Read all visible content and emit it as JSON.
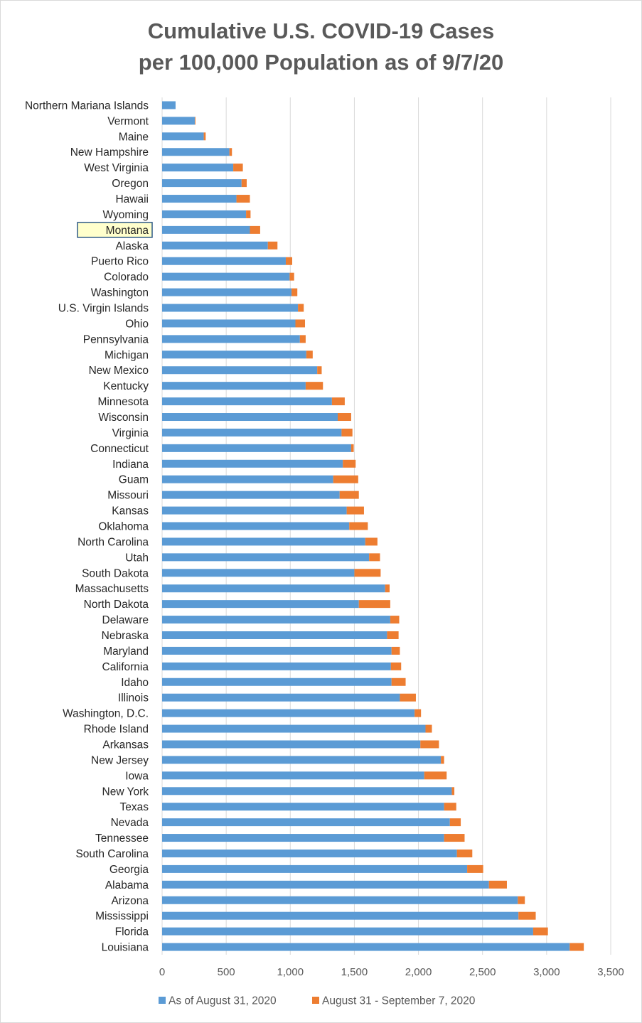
{
  "title": {
    "line1": "Cumulative U.S. COVID-19 Cases",
    "line2": "per 100,000 Population as of 9/7/20"
  },
  "chart_data": {
    "type": "bar",
    "orientation": "horizontal",
    "stacked": true,
    "title": "Cumulative U.S. COVID-19 Cases per 100,000 Population as of 9/7/20",
    "xlim": [
      0,
      3500
    ],
    "xticks": [
      0,
      500,
      1000,
      1500,
      2000,
      2500,
      3000,
      3500
    ],
    "xtick_labels": [
      "0",
      "500",
      "1,000",
      "1,500",
      "2,000",
      "2,500",
      "3,000",
      "3,500"
    ],
    "grid": "vertical",
    "legend_position": "bottom",
    "highlighted_category": "Montana",
    "categories": [
      "Northern Mariana Islands",
      "Vermont",
      "Maine",
      "New Hampshire",
      "West Virginia",
      "Oregon",
      "Hawaii",
      "Wyoming",
      "Montana",
      "Alaska",
      "Puerto Rico",
      "Colorado",
      "Washington",
      "U.S. Virgin Islands",
      "Ohio",
      "Pennsylvania",
      "Michigan",
      "New Mexico",
      "Kentucky",
      "Minnesota",
      "Wisconsin",
      "Virginia",
      "Connecticut",
      "Indiana",
      "Guam",
      "Missouri",
      "Kansas",
      "Oklahoma",
      "North Carolina",
      "Utah",
      "South Dakota",
      "Massachusetts",
      "North Dakota",
      "Delaware",
      "Nebraska",
      "Maryland",
      "California",
      "Idaho",
      "Illinois",
      "Washington, D.C.",
      "Rhode Island",
      "Arkansas",
      "New Jersey",
      "Iowa",
      "New York",
      "Texas",
      "Nevada",
      "Tennessee",
      "South Carolina",
      "Georgia",
      "Alabama",
      "Arizona",
      "Mississippi",
      "Florida",
      "Louisiana"
    ],
    "series": [
      {
        "name": "As of August 31, 2020",
        "color": "#5b9bd5",
        "values": [
          105,
          255,
          325,
          525,
          555,
          620,
          580,
          655,
          685,
          825,
          965,
          995,
          1010,
          1060,
          1040,
          1075,
          1125,
          1210,
          1120,
          1325,
          1370,
          1400,
          1475,
          1410,
          1335,
          1385,
          1440,
          1460,
          1585,
          1615,
          1500,
          1740,
          1535,
          1780,
          1755,
          1790,
          1785,
          1790,
          1855,
          1970,
          2055,
          2015,
          2175,
          2045,
          2260,
          2200,
          2245,
          2200,
          2300,
          2380,
          2550,
          2775,
          2780,
          2895,
          3180
        ]
      },
      {
        "name": "August 31 - September 7, 2020",
        "color": "#ed7d31",
        "values": [
          0,
          5,
          15,
          20,
          75,
          40,
          105,
          35,
          80,
          75,
          50,
          35,
          45,
          45,
          75,
          45,
          50,
          35,
          135,
          100,
          105,
          85,
          20,
          100,
          195,
          150,
          135,
          145,
          95,
          85,
          205,
          35,
          245,
          70,
          90,
          65,
          80,
          110,
          125,
          50,
          50,
          145,
          25,
          175,
          20,
          95,
          85,
          160,
          120,
          125,
          140,
          55,
          135,
          115,
          110
        ]
      }
    ]
  }
}
